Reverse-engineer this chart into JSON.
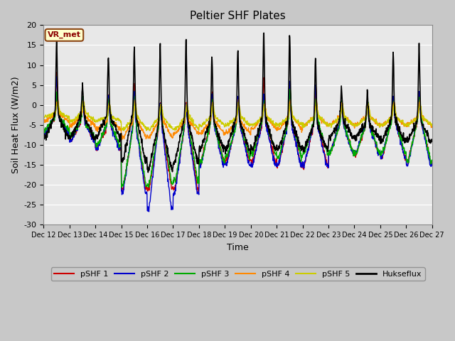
{
  "title": "Peltier SHF Plates",
  "xlabel": "Time",
  "ylabel": "Soil Heat Flux (W/m2)",
  "ylim": [
    -30,
    20
  ],
  "fig_bg_color": "#c8c8c8",
  "plot_bg_color": "#e8e8e8",
  "annotation_text": "VR_met",
  "annotation_bg": "#ffffcc",
  "annotation_border": "#8b4513",
  "legend_entries": [
    "pSHF 1",
    "pSHF 2",
    "pSHF 3",
    "pSHF 4",
    "pSHF 5",
    "Hukseflux"
  ],
  "line_colors": [
    "#cc0000",
    "#0000cc",
    "#00aa00",
    "#ff8800",
    "#cccc00",
    "#000000"
  ],
  "xtick_labels": [
    "Dec 12",
    "Dec 13",
    "Dec 14",
    "Dec 15",
    "Dec 16",
    "Dec 17",
    "Dec 18",
    "Dec 19",
    "Dec 20",
    "Dec 21",
    "Dec 22",
    "Dec 23",
    "Dec 24",
    "Dec 25",
    "Dec 26",
    "Dec 27"
  ],
  "ytick_values": [
    -30,
    -25,
    -20,
    -15,
    -10,
    -5,
    0,
    5,
    10,
    15,
    20
  ],
  "n_points": 1440,
  "n_days": 15,
  "seed": 1234
}
